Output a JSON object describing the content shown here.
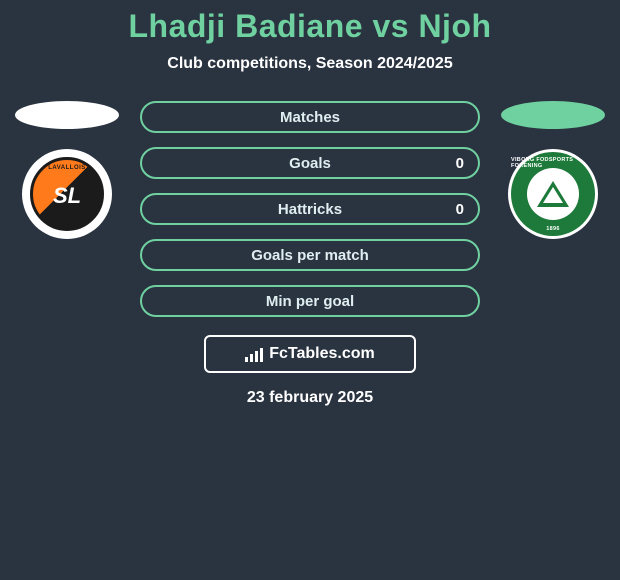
{
  "title": "Lhadji Badiane vs Njoh",
  "subtitle": "Club competitions, Season 2024/2025",
  "date": "23 february 2025",
  "watermark": "FcTables.com",
  "colors": {
    "background": "#2a3340",
    "accent": "#6fd1a0",
    "text": "#ffffff",
    "ellipse_left": "#ffffff",
    "ellipse_right": "#6fd1a0",
    "row_border": "#6fd1a0",
    "badge_left_primary": "#ff7a1a",
    "badge_left_secondary": "#1b1b1b",
    "badge_right_primary": "#1d7a3a"
  },
  "typography": {
    "title_fontsize": 32,
    "subtitle_fontsize": 16,
    "row_fontsize": 15,
    "date_fontsize": 16
  },
  "left_badge": {
    "top_text": "STADE",
    "mid_text": "LAVALLOIS",
    "logo_text": "SL"
  },
  "right_badge": {
    "top_text": "VIBORG FODSPORTS FORENING",
    "bottom_text": "1896"
  },
  "rows": [
    {
      "label": "Matches",
      "left": "",
      "right": ""
    },
    {
      "label": "Goals",
      "left": "",
      "right": "0"
    },
    {
      "label": "Hattricks",
      "left": "",
      "right": "0"
    },
    {
      "label": "Goals per match",
      "left": "",
      "right": ""
    },
    {
      "label": "Min per goal",
      "left": "",
      "right": ""
    }
  ]
}
